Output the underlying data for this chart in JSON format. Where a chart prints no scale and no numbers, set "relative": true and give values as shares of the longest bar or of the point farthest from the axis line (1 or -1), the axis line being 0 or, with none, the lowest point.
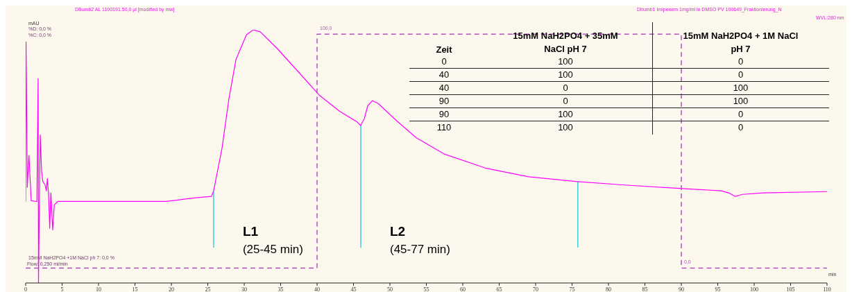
{
  "chart_data": {
    "type": "line",
    "title": "DBumb2 AL 1100191.50,0 µl [modified by mw]",
    "subtitle": "Dbumb1 Imipenem 1mg/ml in DMSO PV 100649_Fraktionierung_N",
    "xlabel": "min",
    "ylabel": "mAU",
    "relative": true,
    "xlim": [
      0,
      110
    ],
    "xticks": [
      0,
      5,
      10,
      15,
      20,
      25,
      30,
      35,
      40,
      45,
      50,
      55,
      60,
      65,
      70,
      75,
      80,
      85,
      90,
      95,
      100,
      105,
      110
    ],
    "marker": "none",
    "series": [
      {
        "color": "#ff00ff",
        "line_style": "solid",
        "x": [
          0,
          0.05,
          0.2,
          0.22,
          0.45,
          0.76,
          1.54,
          1.71,
          1.76,
          2.0,
          2.19,
          2.35,
          2.67,
          2.83,
          2.98,
          3.15,
          3.3,
          3.46,
          3.71,
          3.93,
          4.38,
          19.3,
          23.1,
          25.5,
          25.8,
          26.95,
          27.9,
          28.86,
          30.3,
          31.24,
          32.2,
          34.6,
          37.4,
          40.3,
          43.1,
          45.5,
          45.98,
          46.5,
          46.95,
          47.6,
          48.4,
          50.8,
          53.6,
          57.4,
          63.1,
          68.9,
          75.5,
          82.2,
          88.9,
          95.5,
          96.5,
          97.4,
          98.4,
          101.2,
          110
        ],
        "values": [
          0.322,
          0.952,
          0.485,
          0.378,
          0.504,
          0.325,
          0.322,
          0.807,
          0.0,
          0.585,
          0.44,
          0.401,
          0.387,
          0.364,
          0.412,
          0.345,
          0.216,
          0.356,
          0.21,
          0.308,
          0.322,
          0.322,
          0.336,
          0.342,
          0.364,
          0.532,
          0.728,
          0.882,
          0.98,
          1.0,
          0.992,
          0.924,
          0.835,
          0.742,
          0.678,
          0.636,
          0.622,
          0.65,
          0.7,
          0.72,
          0.709,
          0.644,
          0.574,
          0.51,
          0.454,
          0.42,
          0.401,
          0.387,
          0.375,
          0.364,
          0.356,
          0.342,
          0.35,
          0.356,
          0.361
        ]
      },
      {
        "color": "#b050c0",
        "line_style": "dashed",
        "x": [
          0,
          40,
          40,
          90,
          90,
          110
        ],
        "values": [
          0.059,
          0.059,
          0.983,
          0.983,
          0.059,
          0.059
        ]
      }
    ],
    "ref_lines": [
      {
        "axis": "x",
        "value": 25.8,
        "label": "L1 (25-45 min)",
        "color": "#00c8e0"
      },
      {
        "axis": "x",
        "value": 46,
        "label": "L2 (45-77 min)",
        "color": "#00c8e0"
      },
      {
        "axis": "x",
        "value": 75.8,
        "color": "#00c8e0"
      }
    ],
    "annotations": [
      "WVL:280 nm",
      "%D: 0,0 %",
      "%C: 0,0 %",
      "15mM NaH2PO4 +1M NaCl ph 7: 0,0 %",
      "Flow: 0,250 ml/min",
      "100,0",
      "0,0",
      "Zeit",
      "15mM NaH2PO4 + 35mM NaCl pH 7",
      "15mM NaH2PO4 + 1M NaCl pH 7",
      "0",
      "100",
      "0",
      "40",
      "100",
      "0",
      "40",
      "0",
      "100",
      "90",
      "0",
      "100",
      "90",
      "100",
      "0",
      "110",
      "100",
      "0"
    ]
  }
}
